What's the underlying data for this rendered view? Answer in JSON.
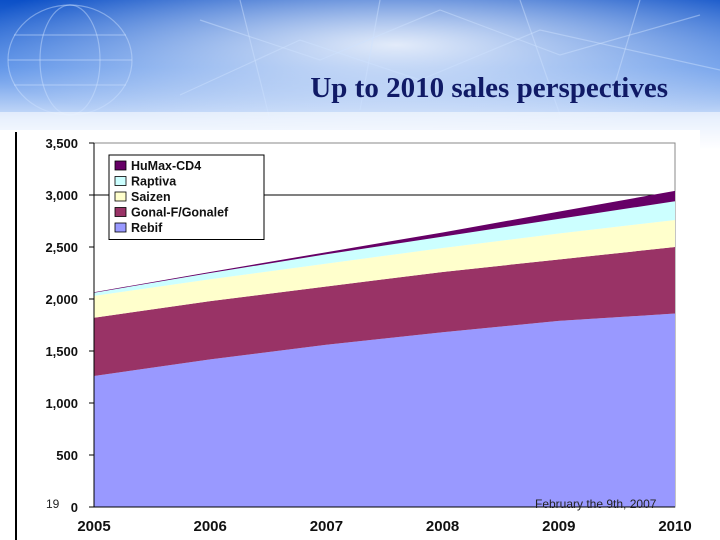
{
  "slide": {
    "title": "Up to 2010 sales perspectives",
    "number": "19",
    "footer_date": "February the 9th, 2007"
  },
  "colors": {
    "Rebif": "#9999ff",
    "Gonal-F/Gonalef": "#993366",
    "Saizen": "#ffffcc",
    "Raptiva": "#ccffff",
    "HuMax-CD4": "#660066"
  },
  "chart_data": {
    "type": "area",
    "stacked": true,
    "x": [
      2005,
      2006,
      2007,
      2008,
      2009,
      2010
    ],
    "categories": [
      "2005",
      "2006",
      "2007",
      "2008",
      "2009",
      "2010"
    ],
    "ylim": [
      0,
      3500
    ],
    "yticks": [
      0,
      500,
      1000,
      1500,
      2000,
      2500,
      3000,
      3500
    ],
    "ytick_labels": [
      "0",
      "500",
      "1,000",
      "1,500",
      "2,000",
      "2,500",
      "3,000",
      "3,500"
    ],
    "gridlines": [
      3000
    ],
    "legend_position": "top-left",
    "series": [
      {
        "name": "Rebif",
        "values": [
          1260,
          1420,
          1560,
          1680,
          1790,
          1860
        ]
      },
      {
        "name": "Gonal-F/Gonalef",
        "values": [
          560,
          560,
          560,
          580,
          590,
          640
        ]
      },
      {
        "name": "Saizen",
        "values": [
          210,
          210,
          220,
          230,
          250,
          260
        ]
      },
      {
        "name": "Raptiva",
        "values": [
          30,
          60,
          90,
          110,
          140,
          180
        ]
      },
      {
        "name": "HuMax-CD4",
        "values": [
          5,
          10,
          20,
          40,
          70,
          100
        ]
      }
    ]
  }
}
